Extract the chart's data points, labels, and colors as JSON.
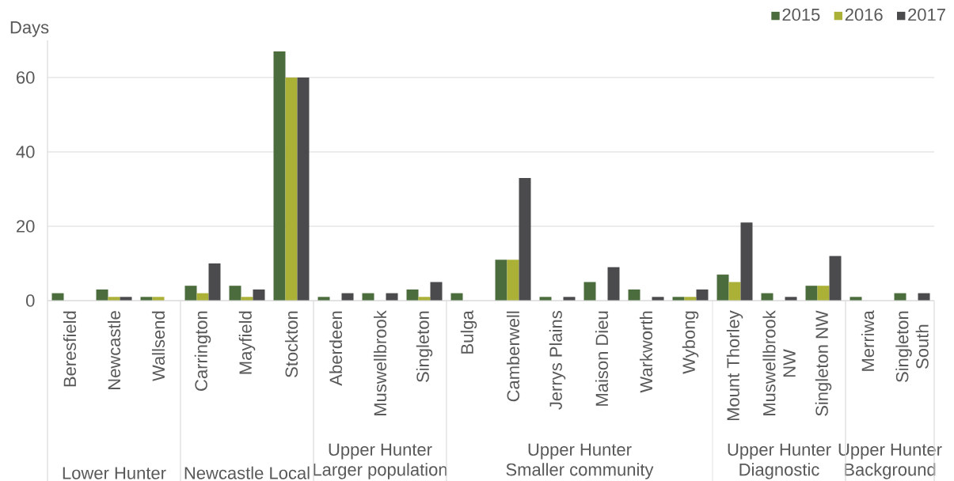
{
  "chart_data": {
    "type": "bar",
    "ylabel": "Days",
    "categories": [
      "Beresfield",
      "Newcastle",
      "Wallsend",
      "Carrington",
      "Mayfield",
      "Stockton",
      "Aberdeen",
      "Muswellbrook",
      "Singleton",
      "Bulga",
      "Camberwell",
      "Jerrys Plains",
      "Maison Dieu",
      "Warkworth",
      "Wybong",
      "Mount Thorley",
      "Muswellbrook NW",
      "Singleton NW",
      "Merriwa",
      "Singleton South"
    ],
    "series": [
      {
        "name": "2015",
        "color": "#4b6c3c",
        "values": [
          2,
          3,
          1,
          4,
          4,
          67,
          1,
          2,
          3,
          2,
          11,
          1,
          5,
          3,
          1,
          7,
          2,
          4,
          1,
          2
        ]
      },
      {
        "name": "2016",
        "color": "#abb137",
        "values": [
          0,
          1,
          1,
          2,
          1,
          60,
          0,
          0,
          1,
          0,
          11,
          0,
          0,
          0,
          1,
          5,
          0,
          4,
          0,
          0
        ]
      },
      {
        "name": "2017",
        "color": "#4b4b4d",
        "values": [
          0,
          1,
          0,
          10,
          3,
          60,
          2,
          2,
          5,
          0,
          33,
          1,
          9,
          1,
          3,
          21,
          1,
          12,
          0,
          2
        ]
      }
    ],
    "ylim": [
      0,
      70
    ],
    "yticks": [
      0,
      20,
      40,
      60
    ],
    "grid": "y",
    "legend": "top right",
    "annotations": [
      "Lower Hunter",
      "Newcastle Local",
      "Upper Hunter Larger population",
      "Upper Hunter Smaller community",
      "Upper Hunter Diagnostic",
      "Upper Hunter Background"
    ]
  }
}
